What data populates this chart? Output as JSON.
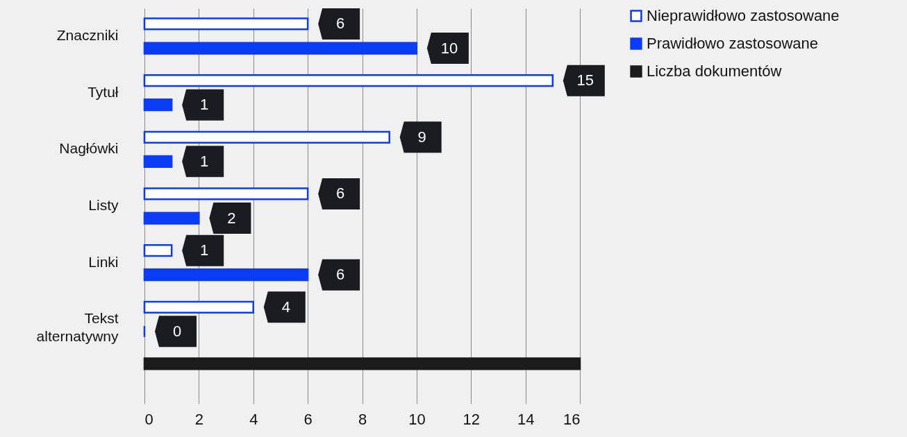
{
  "chart_data": {
    "type": "bar",
    "orientation": "horizontal",
    "categories": [
      "Znaczniki",
      "Tytuł",
      "Nagłówki",
      "Listy",
      "Linki",
      "Tekst alternatywny",
      null
    ],
    "series": [
      {
        "name": "Nieprawidłowo zastosowane",
        "color": "#0b3cf5",
        "values": [
          6,
          15,
          9,
          6,
          1,
          4,
          null
        ],
        "value_labels": [
          "6",
          "15",
          "9",
          "6",
          "1",
          "4",
          null
        ]
      },
      {
        "name": "Prawidłowo zastosowane",
        "color": "#0b3cf5",
        "values": [
          10,
          1,
          1,
          2,
          6,
          0,
          null
        ],
        "value_labels": [
          "10",
          "1",
          "1",
          "2",
          "6",
          "0",
          null
        ]
      },
      {
        "name": "Liczba dokumentów",
        "color": "#1b1b1b",
        "values": [
          null,
          null,
          null,
          null,
          null,
          null,
          16
        ]
      }
    ],
    "xlim": [
      0,
      16
    ],
    "xticks": [
      0,
      2,
      4,
      6,
      8,
      10,
      12,
      14,
      16
    ],
    "grid": "x",
    "legend": "top right"
  }
}
